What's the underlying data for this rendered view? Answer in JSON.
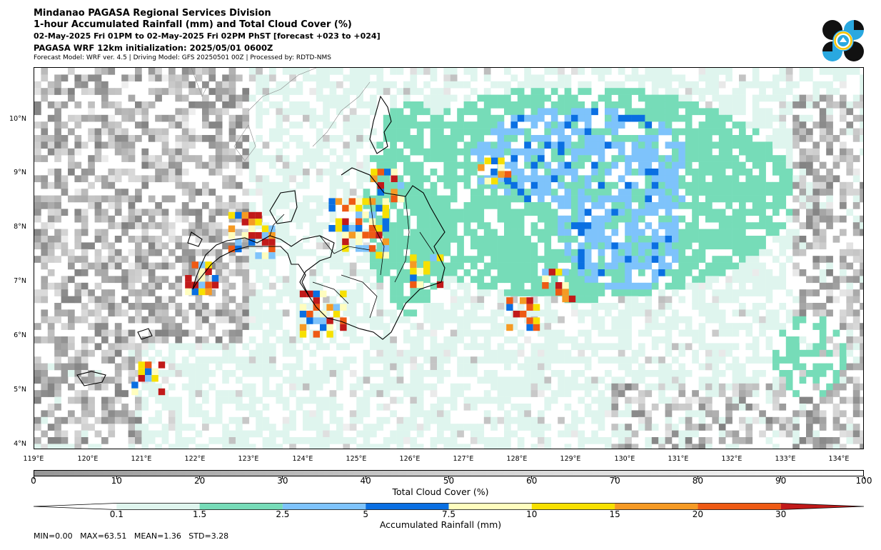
{
  "header": {
    "title1": "Mindanao PAGASA Regional Services Division",
    "title2": "1-hour Accumulated Rainfall (mm) and Total Cloud Cover (%)",
    "period": "02-May-2025 Fri 01PM to 02-May-2025 Fri 02PM PhST [forecast +023 to +024]",
    "init": "PAGASA WRF 12km initialization: 2025/05/01 0600Z",
    "model": "Forecast Model: WRF ver. 4.5 | Driving Model: GFS 20250501 00Z | Processed by: RDTD-NMS"
  },
  "logo": {
    "icon": "pagasa-logo-icon",
    "colors": [
      "#111111",
      "#29a8e0",
      "#f5c400"
    ]
  },
  "map": {
    "lat_labels": [
      "10°N",
      "9°N",
      "8°N",
      "7°N",
      "6°N",
      "5°N",
      "4°N"
    ],
    "lon_labels": [
      "119°E",
      "120°E",
      "121°E",
      "122°E",
      "123°E",
      "124°E",
      "125°E",
      "126°E",
      "127°E",
      "128°E",
      "129°E",
      "130°E",
      "131°E",
      "132°E",
      "133°E",
      "134°E"
    ]
  },
  "cloud_colorbar": {
    "label": "Total Cloud Cover (%)",
    "ticks": [
      "0",
      "10",
      "20",
      "30",
      "40",
      "50",
      "60",
      "70",
      "80",
      "90",
      "100"
    ],
    "colors": [
      "#969696",
      "#ffffff"
    ]
  },
  "rain_colorbar": {
    "label": "Accumulated Rainfall (mm)",
    "ticks": [
      "0.1",
      "1.5",
      "2.5",
      "5",
      "7.5",
      "10",
      "15",
      "20",
      "30"
    ],
    "colors": [
      "#dff5ee",
      "#76dcb8",
      "#7ec3fb",
      "#0a6fe2",
      "#fffdbe",
      "#f7e000",
      "#f59a24",
      "#ee5a14",
      "#c11a1a"
    ]
  },
  "stats": "MIN=0.00   MAX=63.51   MEAN=1.36   STD=3.28"
}
